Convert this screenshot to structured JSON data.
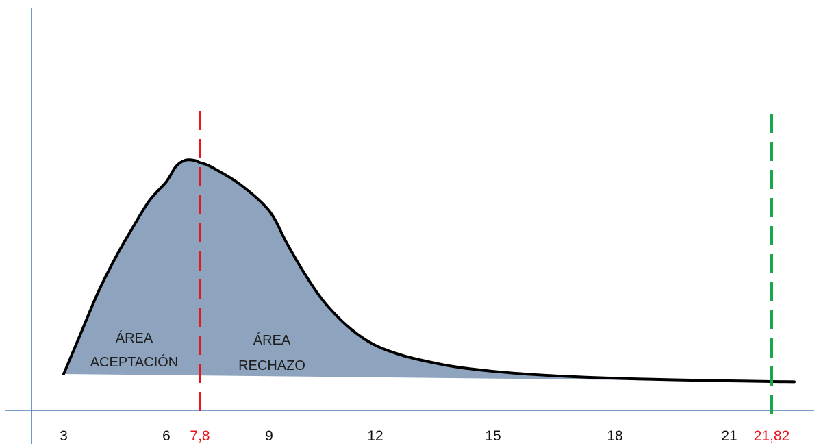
{
  "chart_data": {
    "type": "area",
    "title": "",
    "xlabel": "",
    "ylabel": "",
    "x_ticks": [
      "3",
      "6",
      "7,8",
      "9",
      "12",
      "15",
      "18",
      "21",
      "21,82"
    ],
    "critical_values": [
      {
        "value": 7.8,
        "label": "7,8",
        "color": "#e8141c",
        "style": "dashed"
      },
      {
        "value": 21.82,
        "label": "21,82",
        "color": "#18a84a",
        "style": "dashed"
      }
    ],
    "regions": [
      {
        "id": "acceptance",
        "line1": "ÁREA",
        "line2": "ACEPTACIÓN"
      },
      {
        "id": "rejection",
        "line1": "ÁREA",
        "line2": "RECHAZO"
      }
    ],
    "curve_x": [
      3.0,
      3.5,
      4.0,
      4.5,
      5.0,
      5.5,
      6.0,
      6.5,
      7.0,
      7.5,
      7.8,
      8.0,
      8.5,
      9.0,
      9.5,
      10.0,
      10.5,
      11.0,
      11.5,
      12.0,
      12.5,
      13.0,
      14.0,
      15.0,
      16.0,
      17.0,
      18.0,
      19.0,
      20.0,
      21.0,
      21.82,
      22.0
    ],
    "curve_y": [
      0.0,
      0.19,
      0.38,
      0.54,
      0.68,
      0.81,
      0.9,
      0.97,
      1.0,
      1.0,
      0.99,
      0.97,
      0.89,
      0.77,
      0.62,
      0.48,
      0.36,
      0.27,
      0.2,
      0.15,
      0.115,
      0.09,
      0.055,
      0.035,
      0.022,
      0.014,
      0.009,
      0.006,
      0.004,
      0.003,
      0.002,
      0.002
    ],
    "xlim": [
      3,
      22
    ],
    "colors": {
      "fill": "#8ea4be",
      "curve": "#000000",
      "axis": "#4a7ebb"
    }
  }
}
